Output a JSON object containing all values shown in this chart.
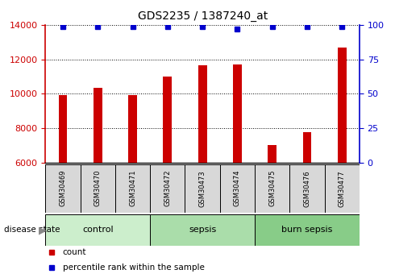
{
  "title": "GDS2235 / 1387240_at",
  "samples": [
    "GSM30469",
    "GSM30470",
    "GSM30471",
    "GSM30472",
    "GSM30473",
    "GSM30474",
    "GSM30475",
    "GSM30476",
    "GSM30477"
  ],
  "counts": [
    9950,
    10350,
    9950,
    11000,
    11650,
    11700,
    7000,
    7750,
    12700
  ],
  "percentiles": [
    99,
    99,
    99,
    99,
    99,
    97,
    99,
    99,
    99
  ],
  "ymin": 6000,
  "ymax": 14000,
  "yticks_left": [
    6000,
    8000,
    10000,
    12000,
    14000
  ],
  "yticks_right": [
    0,
    25,
    50,
    75,
    100
  ],
  "groups": [
    {
      "label": "control",
      "start": 0,
      "end": 3,
      "color": "#cceecc"
    },
    {
      "label": "sepsis",
      "start": 3,
      "end": 6,
      "color": "#aaddaa"
    },
    {
      "label": "burn sepsis",
      "start": 6,
      "end": 9,
      "color": "#88cc88"
    }
  ],
  "bar_color": "#cc0000",
  "dot_color": "#0000cc",
  "left_axis_color": "#cc0000",
  "right_axis_color": "#0000cc",
  "background_color": "#ffffff",
  "sample_box_color": "#d8d8d8",
  "legend_items": [
    {
      "label": "count",
      "color": "#cc0000"
    },
    {
      "label": "percentile rank within the sample",
      "color": "#0000cc"
    }
  ]
}
